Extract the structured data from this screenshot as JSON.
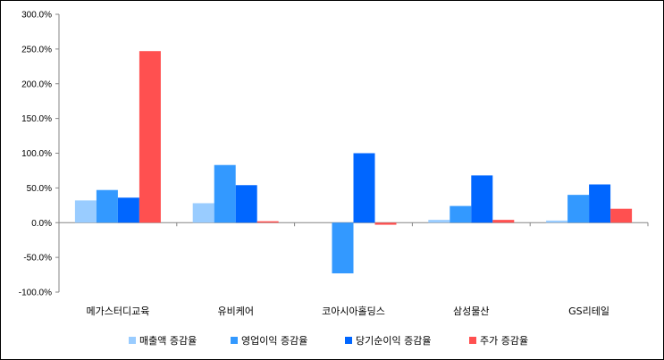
{
  "chart_data": {
    "type": "bar",
    "title": "",
    "xlabel": "",
    "ylabel": "",
    "ylim": [
      -100,
      300
    ],
    "ytick_step": 50,
    "ytick_labels": [
      "300.0%",
      "250.0%",
      "200.0%",
      "150.0%",
      "100.0%",
      "50.0%",
      "0.0%",
      "-50.0%",
      "-100.0%"
    ],
    "grid": false,
    "legend_position": "bottom",
    "categories": [
      "메가스터디교육",
      "유비케어",
      "코아시아홀딩스",
      "삼성물산",
      "GS리테일"
    ],
    "series": [
      {
        "name": "매출액 증감율",
        "color": "#99CCFF",
        "values": [
          32,
          28,
          0,
          4,
          3
        ]
      },
      {
        "name": "영업이익 증감율",
        "color": "#3399FF",
        "values": [
          47,
          83,
          -73,
          24,
          40
        ]
      },
      {
        "name": "당기순이익 증감율",
        "color": "#0066FF",
        "values": [
          36,
          54,
          100,
          68,
          55
        ]
      },
      {
        "name": "주가 증감율",
        "color": "#FF5050",
        "values": [
          247,
          2,
          -3,
          4,
          20
        ]
      }
    ]
  }
}
